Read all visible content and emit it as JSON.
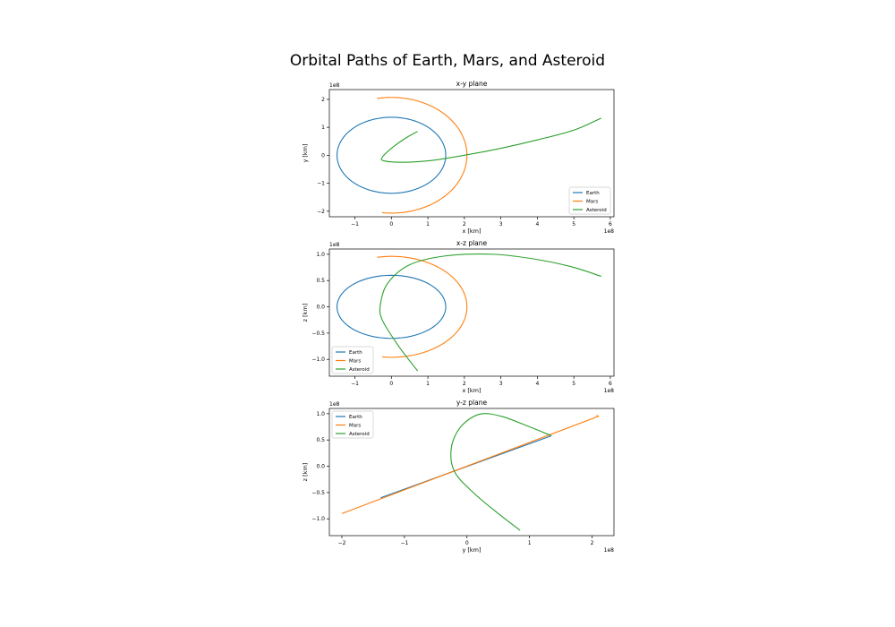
{
  "figure": {
    "title": "Orbital Paths of Earth, Mars, and Asteroid"
  },
  "colors": {
    "Earth": "#1f77b4",
    "Mars": "#ff7f0e",
    "Asteroid": "#2ca02c"
  },
  "chart_data": [
    {
      "type": "line",
      "title": "x-y plane",
      "xlabel": "x [km]",
      "ylabel": "y [km]",
      "x_offset_label": "1e8",
      "y_offset_label": "1e8",
      "xlim": [
        -1.7,
        6.1
      ],
      "ylim": [
        -2.2,
        2.35
      ],
      "xticks": [
        -1,
        0,
        1,
        2,
        3,
        4,
        5,
        6
      ],
      "yticks": [
        -2,
        -1,
        0,
        1,
        2
      ],
      "xtick_labels": [
        "−1",
        "0",
        "1",
        "2",
        "3",
        "4",
        "5",
        "6"
      ],
      "ytick_labels": [
        "−2",
        "−1",
        "0",
        "1",
        "2"
      ],
      "legend_position": "lower right",
      "series": [
        {
          "name": "Earth",
          "shape": "ellipse",
          "center": [
            0,
            0
          ],
          "radii": [
            1.49,
            1.36
          ]
        },
        {
          "name": "Mars",
          "shape": "arc",
          "center": [
            0,
            0
          ],
          "radii": [
            2.07,
            2.07
          ],
          "from_deg": 101,
          "to_deg": 263
        },
        {
          "name": "Asteroid",
          "shape": "path",
          "points": [
            [
              0.72,
              0.85
            ],
            [
              0.4,
              0.62
            ],
            [
              0.05,
              0.3
            ],
            [
              -0.25,
              -0.07
            ],
            [
              -0.2,
              -0.2
            ],
            [
              0.3,
              -0.25
            ],
            [
              1,
              -0.2
            ],
            [
              2,
              0
            ],
            [
              3,
              0.25
            ],
            [
              4,
              0.55
            ],
            [
              5,
              0.9
            ],
            [
              5.75,
              1.33
            ]
          ]
        }
      ]
    },
    {
      "type": "line",
      "title": "x-z plane",
      "xlabel": "x [km]",
      "ylabel": "z [km]",
      "x_offset_label": "1e8",
      "y_offset_label": "1e8",
      "xlim": [
        -1.7,
        6.1
      ],
      "ylim": [
        -1.32,
        1.1
      ],
      "xticks": [
        -1,
        0,
        1,
        2,
        3,
        4,
        5,
        6
      ],
      "yticks": [
        -1.0,
        -0.5,
        0.0,
        0.5,
        1.0
      ],
      "xtick_labels": [
        "−1",
        "0",
        "1",
        "2",
        "3",
        "4",
        "5",
        "6"
      ],
      "ytick_labels": [
        "−1.0",
        "−0.5",
        "0.0",
        "0.5",
        "1.0"
      ],
      "legend_position": "lower left",
      "series": [
        {
          "name": "Earth",
          "shape": "ellipse",
          "center": [
            0,
            0
          ],
          "radii": [
            1.49,
            0.6
          ]
        },
        {
          "name": "Mars",
          "shape": "arc",
          "center": [
            0,
            0
          ],
          "radii": [
            2.07,
            0.96
          ],
          "from_deg": 101,
          "to_deg": 263
        },
        {
          "name": "Asteroid",
          "shape": "path",
          "points": [
            [
              0.72,
              -1.22
            ],
            [
              0.2,
              -0.75
            ],
            [
              -0.25,
              -0.25
            ],
            [
              -0.3,
              0.05
            ],
            [
              -0.1,
              0.45
            ],
            [
              0.5,
              0.8
            ],
            [
              1.5,
              0.97
            ],
            [
              2.8,
              1.0
            ],
            [
              4,
              0.9
            ],
            [
              5,
              0.75
            ],
            [
              5.75,
              0.58
            ]
          ]
        }
      ]
    },
    {
      "type": "line",
      "title": "y-z plane",
      "xlabel": "y [km]",
      "ylabel": "z [km]",
      "x_offset_label": "1e8",
      "y_offset_label": "1e8",
      "xlim": [
        -2.2,
        2.35
      ],
      "ylim": [
        -1.32,
        1.1
      ],
      "xticks": [
        -2,
        -1,
        0,
        1,
        2
      ],
      "yticks": [
        -1.0,
        -0.5,
        0.0,
        0.5,
        1.0
      ],
      "xtick_labels": [
        "−2",
        "−1",
        "0",
        "1",
        "2"
      ],
      "ytick_labels": [
        "−1.0",
        "−0.5",
        "0.0",
        "0.5",
        "1.0"
      ],
      "legend_position": "upper left",
      "series": [
        {
          "name": "Earth",
          "shape": "path",
          "points": [
            [
              -1.38,
              -0.6
            ],
            [
              1.35,
              0.58
            ]
          ]
        },
        {
          "name": "Mars",
          "shape": "path",
          "points": [
            [
              -2.0,
              -0.9
            ],
            [
              2.1,
              0.95
            ],
            [
              2.07,
              0.97
            ]
          ]
        },
        {
          "name": "Asteroid",
          "shape": "path",
          "points": [
            [
              0.85,
              -1.22
            ],
            [
              0.5,
              -0.9
            ],
            [
              0.1,
              -0.5
            ],
            [
              -0.2,
              -0.1
            ],
            [
              -0.25,
              0.35
            ],
            [
              -0.1,
              0.75
            ],
            [
              0.2,
              0.99
            ],
            [
              0.55,
              0.95
            ],
            [
              1.0,
              0.75
            ],
            [
              1.35,
              0.58
            ]
          ]
        }
      ]
    }
  ]
}
